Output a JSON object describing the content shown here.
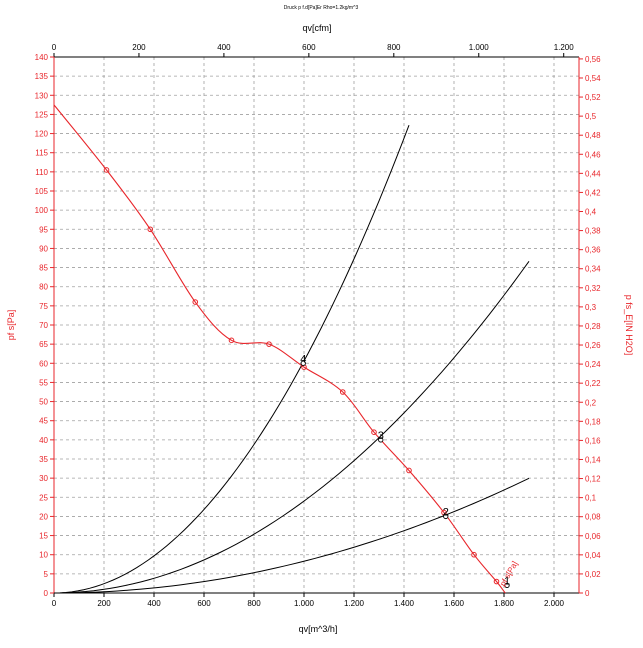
{
  "chart_data": {
    "type": "line",
    "title": "Druck p f.d[Pa]Er Rho=1.2kg/m^3",
    "xlabel": "qv[m^3/h]",
    "x2label": "qv[cfm]",
    "ylabel": "pf s[Pa]",
    "y2label": "p fs_E[IN H2O]",
    "xlim": [
      0,
      2100
    ],
    "ylim": [
      0,
      140
    ],
    "x2lim": [
      0,
      1236
    ],
    "y2lim": [
      0,
      0.562
    ],
    "grid": true,
    "x_ticks": [
      "0",
      "200",
      "400",
      "600",
      "800",
      "1.000",
      "1.200",
      "1.400",
      "1.600",
      "1.800",
      "2.000"
    ],
    "y_ticks": [
      "0",
      "5",
      "10",
      "15",
      "20",
      "25",
      "30",
      "35",
      "40",
      "45",
      "50",
      "55",
      "60",
      "65",
      "70",
      "75",
      "80",
      "85",
      "90",
      "95",
      "100",
      "105",
      "110",
      "115",
      "120",
      "125",
      "130",
      "135",
      "140"
    ],
    "x2_ticks": [
      "0",
      "200",
      "400",
      "600",
      "800",
      "1.000",
      "1.200"
    ],
    "y2_ticks": [
      "0",
      "0,02",
      "0,04",
      "0,06",
      "0,08",
      "0,1",
      "0,12",
      "0,14",
      "0,16",
      "0,18",
      "0,2",
      "0,22",
      "0,24",
      "0,26",
      "0,28",
      "0,3",
      "0,32",
      "0,34",
      "0,36",
      "0,38",
      "0,4",
      "0,42",
      "0,44",
      "0,46",
      "0,48",
      "0,5",
      "0,52",
      "0,54",
      "0,56"
    ],
    "colors": {
      "fan_curve": "#e8262b",
      "system_curve": "#000000",
      "grid": "#a0a0a0",
      "axis_primary": "#e8262b"
    },
    "series": [
      {
        "x": [
          0,
          210,
          385,
          565,
          710,
          860,
          1000,
          1155,
          1280,
          1420,
          1560,
          1680,
          1770,
          1805
        ],
        "y": [
          127.5,
          110.5,
          95,
          76,
          66,
          65,
          59,
          52.5,
          42,
          32,
          21,
          10,
          3,
          0
        ]
      }
    ],
    "system_curves": [
      {
        "k": 6.06e-05,
        "x_end": 1420
      },
      {
        "k": 2.4e-05,
        "x_end": 1900
      },
      {
        "k": 8.3e-06,
        "x_end": 1900
      }
    ],
    "annotations": [
      {
        "text": "4",
        "x": 985,
        "y": 60
      },
      {
        "text": "3",
        "x": 1295,
        "y": 40
      },
      {
        "text": "2",
        "x": 1555,
        "y": 20
      },
      {
        "text": "1",
        "x": 1800,
        "y": 2
      }
    ],
    "corner_label": "pf s[Pa]"
  }
}
